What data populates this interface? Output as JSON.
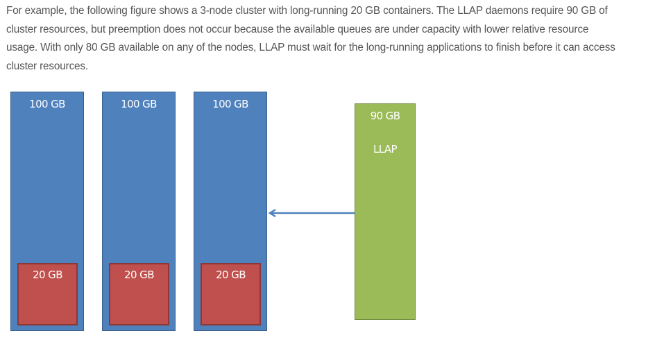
{
  "paragraph": {
    "lines": [
      "For example, the following figure shows a 3-node cluster with long-running 20 GB containers. The LLAP daemons require 90 GB of",
      "cluster resources, but preemption does not occur because the available queues are under capacity with lower relative resource",
      "usage. With only 80 GB available on any of the nodes, LLAP must wait for the long-running applications to finish before it can access",
      "cluster resources."
    ]
  },
  "figure": {
    "nodes": [
      {
        "capacity": "100 GB",
        "container": "20 GB"
      },
      {
        "capacity": "100 GB",
        "container": "20 GB"
      },
      {
        "capacity": "100 GB",
        "container": "20 GB"
      }
    ],
    "llap": {
      "size": "90 GB",
      "name": "LLAP"
    },
    "colors": {
      "node": "#4f81bd",
      "container": "#c0504d",
      "llap": "#9bbb59",
      "arrow": "#4f81bd"
    }
  }
}
